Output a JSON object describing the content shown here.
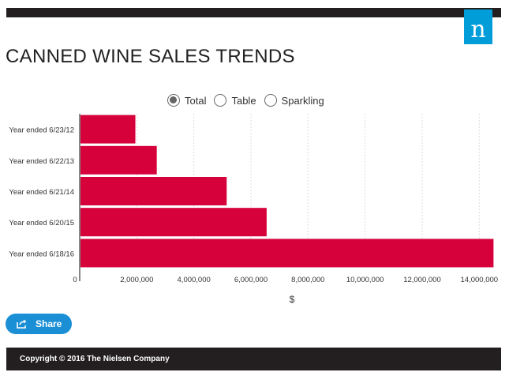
{
  "header": {
    "logo_letter": "n",
    "title": "CANNED WINE SALES TRENDS"
  },
  "toggles": [
    {
      "label": "Total",
      "selected": true
    },
    {
      "label": "Table",
      "selected": false
    },
    {
      "label": "Sparkling",
      "selected": false
    }
  ],
  "chart_data": {
    "type": "bar",
    "orientation": "horizontal",
    "categories": [
      "Year ended 6/23/12",
      "Year ended 6/22/13",
      "Year ended 6/21/14",
      "Year ended 6/20/15",
      "Year ended 6/18/16"
    ],
    "values": [
      1950000,
      2700000,
      5150000,
      6550000,
      14500000
    ],
    "xlabel": "$",
    "xlim": [
      0,
      14600000
    ],
    "x_ticks": [
      0,
      2000000,
      4000000,
      6000000,
      8000000,
      10000000,
      12000000,
      14000000
    ],
    "x_tick_labels": [
      "0",
      "2,000,000",
      "4,000,000",
      "6,000,000",
      "8,000,000",
      "10,000,000",
      "12,000,000",
      "14,000,000"
    ],
    "grid": true,
    "bar_color": "#d6003a"
  },
  "share": {
    "label": "Share"
  },
  "footer": {
    "copyright": "Copyright © 2016 The Nielsen Company"
  },
  "colors": {
    "accent": "#009dd9",
    "dark": "#231f20",
    "bar": "#d6003a",
    "share": "#1a8fd6"
  }
}
